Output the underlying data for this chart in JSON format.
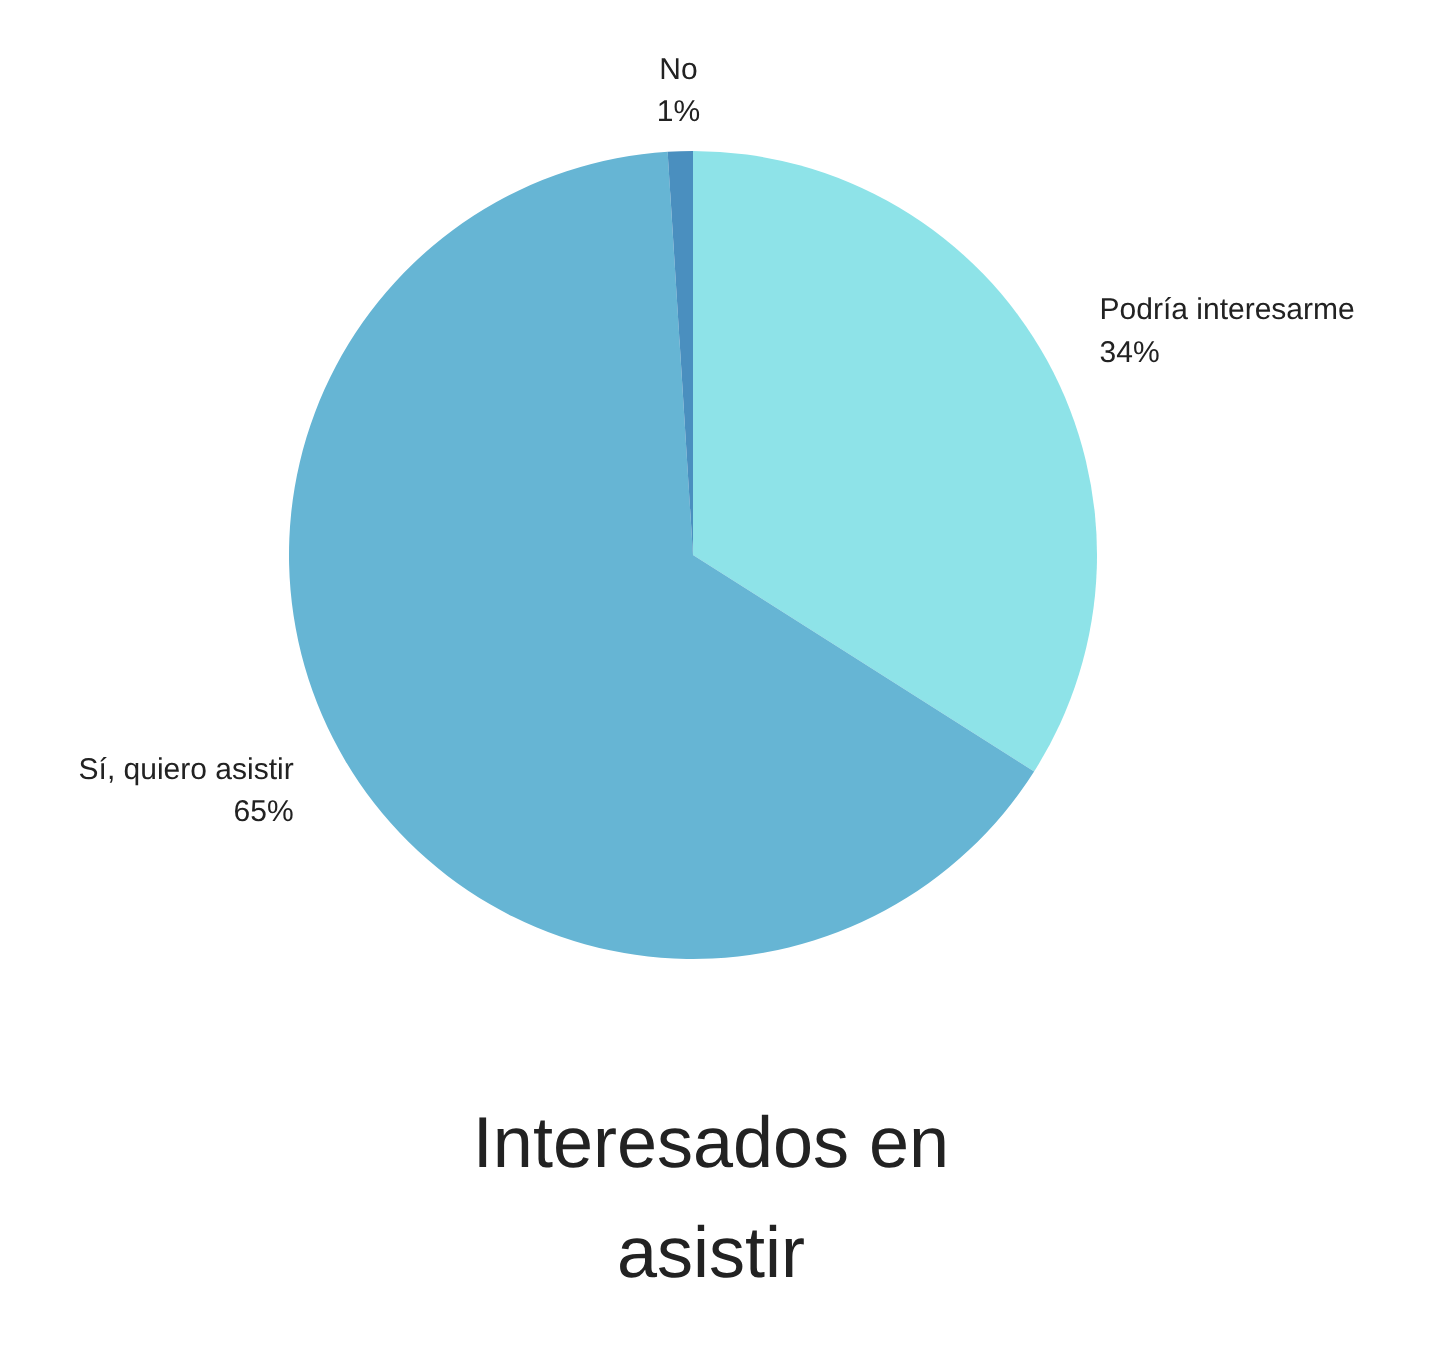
{
  "chart_data": {
    "type": "pie",
    "title": "Interesados en asistir",
    "categories": [
      "Podría interesarme",
      "Sí, quiero asistir",
      "No"
    ],
    "values": [
      34,
      65,
      1
    ],
    "colors": [
      "#8ee3e8",
      "#66b5d4",
      "#4a8fbf"
    ],
    "value_labels": [
      "34%",
      "65%",
      "1%"
    ]
  }
}
